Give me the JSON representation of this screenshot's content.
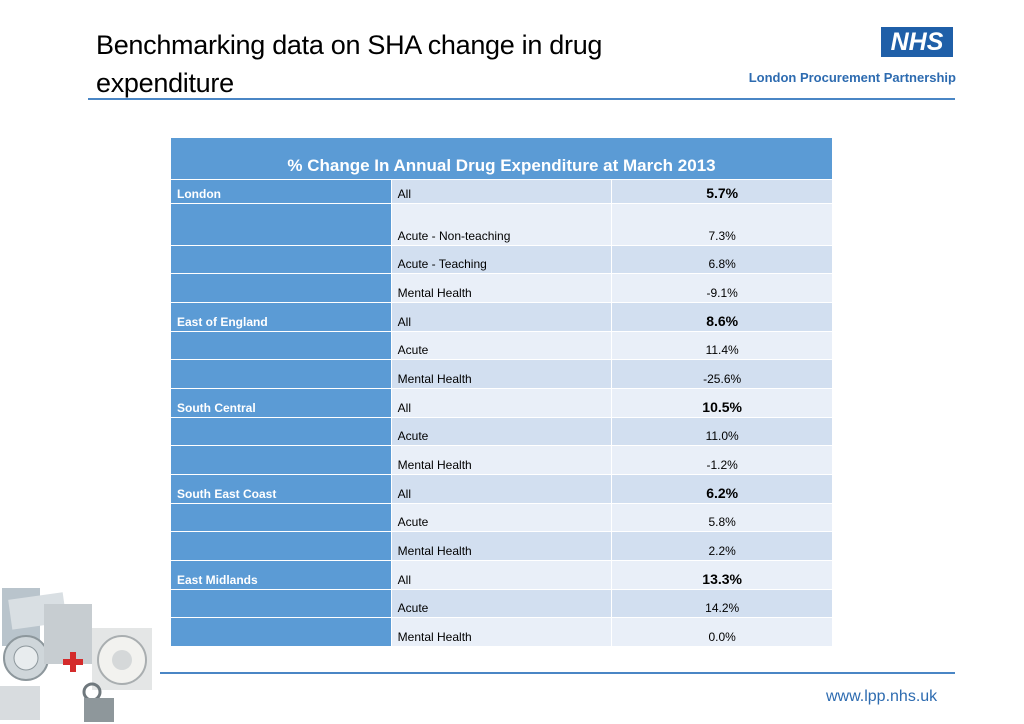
{
  "header": {
    "title": "Benchmarking data on SHA change in drug expenditure",
    "nhs_logo": "NHS",
    "org_name": "London Procurement Partnership"
  },
  "table": {
    "caption": "% Change In Annual Drug Expenditure at March 2013",
    "rows": [
      {
        "region": "London",
        "category": "All",
        "value": "5.7%",
        "bold": true
      },
      {
        "region": "",
        "category": "Acute - Non-teaching",
        "value": "7.3%",
        "bold": false
      },
      {
        "region": "",
        "category": "Acute - Teaching",
        "value": "6.8%",
        "bold": false
      },
      {
        "region": "",
        "category": "Mental Health",
        "value": "-9.1%",
        "bold": false
      },
      {
        "region": "East of England",
        "category": "All",
        "value": "8.6%",
        "bold": true
      },
      {
        "region": "",
        "category": "Acute",
        "value": "11.4%",
        "bold": false
      },
      {
        "region": "",
        "category": "Mental Health",
        "value": "-25.6%",
        "bold": false
      },
      {
        "region": "South Central",
        "category": "All",
        "value": "10.5%",
        "bold": true
      },
      {
        "region": "",
        "category": "Acute",
        "value": "11.0%",
        "bold": false
      },
      {
        "region": "",
        "category": "Mental Health",
        "value": "-1.2%",
        "bold": false
      },
      {
        "region": "South East Coast",
        "category": "All",
        "value": "6.2%",
        "bold": true
      },
      {
        "region": "",
        "category": "Acute",
        "value": "5.8%",
        "bold": false
      },
      {
        "region": "",
        "category": "Mental Health",
        "value": "2.2%",
        "bold": false
      },
      {
        "region": "East Midlands",
        "category": "All",
        "value": "13.3%",
        "bold": true
      },
      {
        "region": "",
        "category": "Acute",
        "value": "14.2%",
        "bold": false
      },
      {
        "region": "",
        "category": "Mental Health",
        "value": "0.0%",
        "bold": false
      }
    ]
  },
  "footer": {
    "url": "www.lpp.nhs.uk"
  },
  "colors": {
    "accent": "#5b9bd5",
    "brand": "#1f5fa8",
    "row_odd": "#d2dff0",
    "row_even": "#e9eff8"
  }
}
